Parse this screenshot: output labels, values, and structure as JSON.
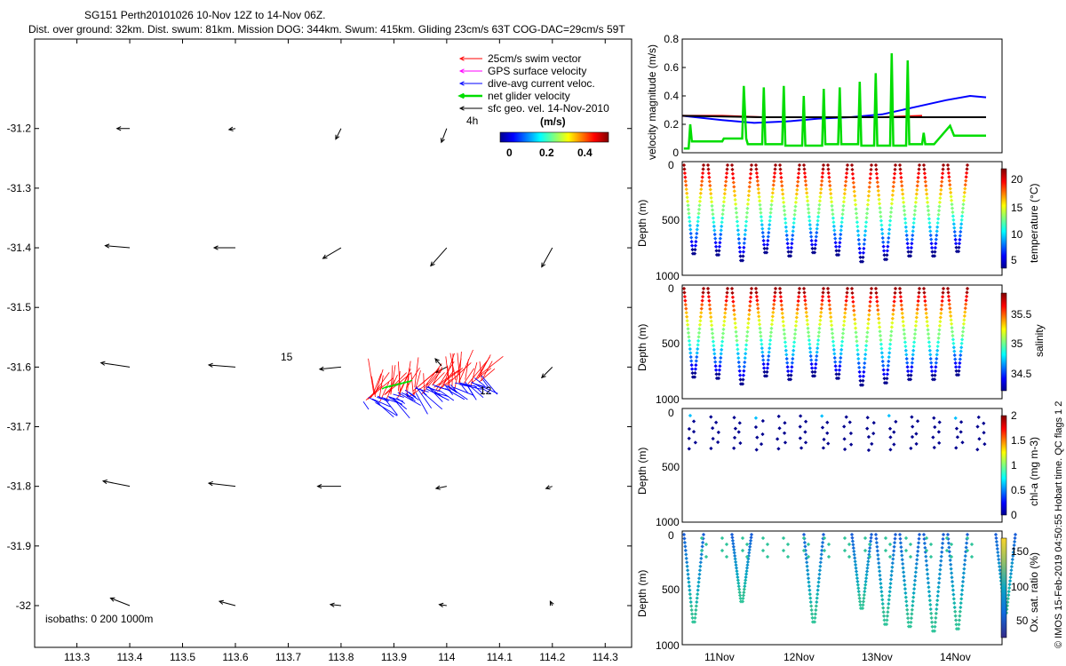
{
  "header": {
    "line1": "SG151 Perth20101026 10-Nov 12Z to 14-Nov 06Z.",
    "line2": "Dist. over ground: 32km. Dist. swum: 81km. Mission DOG: 344km. Swum: 415km. Gliding 23cm/s 63T COG-DAC=29cm/s 59T"
  },
  "side_note": "© IMOS 15-Feb-2019 04:50:55 Hobart time. QC flags 1  2",
  "colors": {
    "red": "#ff0000",
    "magenta": "#ff00ff",
    "blue": "#0000ff",
    "green": "#00dd00",
    "black": "#000000"
  },
  "chart_data": [
    {
      "id": "map",
      "type": "scatter",
      "title": "",
      "xlabel": "",
      "ylabel": "",
      "xlim": [
        113.22,
        114.35
      ],
      "ylim": [
        -32.07,
        -31.05
      ],
      "xticks": [
        "113.3",
        "113.4",
        "113.5",
        "113.6",
        "113.7",
        "113.8",
        "113.9",
        "114",
        "114.1",
        "114.2",
        "114.3"
      ],
      "xtick_values": [
        113.3,
        113.4,
        113.5,
        113.6,
        113.7,
        113.8,
        113.9,
        114.0,
        114.1,
        114.2,
        114.3
      ],
      "yticks": [
        "-31.2",
        "-31.3",
        "-31.4",
        "-31.5",
        "-31.6",
        "-31.7",
        "-31.8",
        "-31.9",
        "-32"
      ],
      "ytick_values": [
        -31.2,
        -31.3,
        -31.4,
        -31.5,
        -31.6,
        -31.7,
        -31.8,
        -31.9,
        -32.0
      ],
      "legend": [
        {
          "label": "25cm/s swim vector",
          "color": "#ff0000"
        },
        {
          "label": "GPS surface velocity",
          "color": "#ff00ff"
        },
        {
          "label": "dive-avg current veloc.",
          "color": "#0000ff"
        },
        {
          "label": "net glider velocity",
          "color": "#00dd00"
        },
        {
          "label": "sfc geo. vel. 14-Nov-2010",
          "color": "#000000"
        }
      ],
      "colorbar": {
        "label": "(m/s)",
        "ticks": [
          "0",
          "0.2",
          "0.4"
        ],
        "range": [
          0,
          0.5
        ]
      },
      "annotations": [
        "4h",
        "15",
        "12",
        "isobaths: 0   200  1000m"
      ],
      "geo_vectors": [
        {
          "lon": 113.4,
          "lat": -31.2,
          "u": -0.12,
          "v": 0.0
        },
        {
          "lon": 113.6,
          "lat": -31.2,
          "u": -0.06,
          "v": -0.01
        },
        {
          "lon": 113.8,
          "lat": -31.2,
          "u": -0.05,
          "v": -0.1
        },
        {
          "lon": 114.0,
          "lat": -31.2,
          "u": -0.05,
          "v": -0.13
        },
        {
          "lon": 113.4,
          "lat": -31.4,
          "u": -0.23,
          "v": 0.02
        },
        {
          "lon": 113.6,
          "lat": -31.4,
          "u": -0.2,
          "v": 0.0
        },
        {
          "lon": 113.8,
          "lat": -31.4,
          "u": -0.17,
          "v": -0.1
        },
        {
          "lon": 114.0,
          "lat": -31.4,
          "u": -0.15,
          "v": -0.17
        },
        {
          "lon": 114.2,
          "lat": -31.4,
          "u": -0.1,
          "v": -0.18
        },
        {
          "lon": 113.4,
          "lat": -31.6,
          "u": -0.27,
          "v": 0.04
        },
        {
          "lon": 113.6,
          "lat": -31.6,
          "u": -0.25,
          "v": 0.02
        },
        {
          "lon": 113.8,
          "lat": -31.6,
          "u": -0.2,
          "v": -0.02
        },
        {
          "lon": 114.0,
          "lat": -31.6,
          "u": -0.1,
          "v": -0.05
        },
        {
          "lon": 114.2,
          "lat": -31.6,
          "u": -0.1,
          "v": -0.1
        },
        {
          "lon": 113.4,
          "lat": -31.8,
          "u": -0.25,
          "v": 0.05
        },
        {
          "lon": 113.6,
          "lat": -31.8,
          "u": -0.25,
          "v": 0.03
        },
        {
          "lon": 113.8,
          "lat": -31.8,
          "u": -0.22,
          "v": 0.0
        },
        {
          "lon": 114.0,
          "lat": -31.8,
          "u": -0.1,
          "v": -0.02
        },
        {
          "lon": 114.2,
          "lat": -31.8,
          "u": -0.06,
          "v": -0.02
        },
        {
          "lon": 113.4,
          "lat": -32.0,
          "u": -0.18,
          "v": 0.07
        },
        {
          "lon": 113.6,
          "lat": -32.0,
          "u": -0.15,
          "v": 0.04
        },
        {
          "lon": 113.8,
          "lat": -32.0,
          "u": -0.1,
          "v": 0.01
        },
        {
          "lon": 114.0,
          "lat": -32.0,
          "u": -0.07,
          "v": 0.01
        },
        {
          "lon": 114.2,
          "lat": -32.0,
          "u": -0.02,
          "v": 0.04
        }
      ]
    },
    {
      "id": "velocity",
      "type": "line",
      "xlabel": "",
      "ylabel": "velocity magnitude (m/s)",
      "ylim": [
        0,
        0.8
      ],
      "yticks": [
        "0",
        "0.2",
        "0.4",
        "0.6",
        "0.8"
      ],
      "ytick_values": [
        0,
        0.2,
        0.4,
        0.6,
        0.8
      ],
      "xlim": [
        10.5,
        14.5
      ],
      "series": [
        {
          "name": "dive-avg current",
          "color": "#0000ff",
          "x": [
            10.5,
            11.0,
            11.4,
            11.8,
            12.2,
            12.6,
            13.0,
            13.4,
            13.8,
            14.1,
            14.3
          ],
          "y": [
            0.26,
            0.23,
            0.21,
            0.22,
            0.24,
            0.25,
            0.27,
            0.32,
            0.37,
            0.4,
            0.39
          ]
        },
        {
          "name": "swim",
          "color": "#ff0000",
          "x": [
            10.5,
            11.0,
            11.5,
            12.0,
            12.5,
            13.0,
            13.5
          ],
          "y": [
            0.26,
            0.26,
            0.25,
            0.25,
            0.25,
            0.25,
            0.26
          ]
        },
        {
          "name": "sfc geo",
          "color": "#000000",
          "x": [
            10.5,
            11.5,
            12.5,
            13.5,
            14.3
          ],
          "y": [
            0.26,
            0.25,
            0.25,
            0.25,
            0.25
          ]
        },
        {
          "name": "net glider velocity",
          "color": "#00dd00",
          "x": [
            10.52,
            10.58,
            10.6,
            10.62,
            11.0,
            11.02,
            11.25,
            11.27,
            11.3,
            11.32,
            11.5,
            11.52,
            11.54,
            11.75,
            11.77,
            11.79,
            12.0,
            12.02,
            12.04,
            12.25,
            12.27,
            12.29,
            12.45,
            12.47,
            12.49,
            12.7,
            12.72,
            12.74,
            12.9,
            12.92,
            12.94,
            13.1,
            13.12,
            13.14,
            13.3,
            13.32,
            13.34,
            13.5,
            13.52,
            13.54,
            13.65,
            13.85,
            13.9,
            14.3
          ],
          "y": [
            0.03,
            0.03,
            0.2,
            0.08,
            0.08,
            0.1,
            0.1,
            0.47,
            0.1,
            0.06,
            0.06,
            0.46,
            0.06,
            0.06,
            0.47,
            0.05,
            0.05,
            0.4,
            0.05,
            0.05,
            0.45,
            0.06,
            0.06,
            0.46,
            0.06,
            0.06,
            0.5,
            0.05,
            0.05,
            0.56,
            0.05,
            0.05,
            0.7,
            0.05,
            0.05,
            0.65,
            0.06,
            0.06,
            0.14,
            0.06,
            0.06,
            0.19,
            0.12,
            0.12
          ]
        }
      ]
    },
    {
      "id": "temperature",
      "type": "scatter",
      "ylabel": "Depth (m)",
      "ylim": [
        1000,
        0
      ],
      "yticks": [
        "0",
        "500",
        "1000"
      ],
      "colorbar": {
        "label": "temperature (°C)",
        "ticks": [
          "5",
          "10",
          "15",
          "20"
        ],
        "range": [
          3,
          23
        ]
      },
      "dive_bottoms_m": [
        810,
        820,
        870,
        800,
        830,
        800,
        820,
        880,
        860,
        830,
        830,
        790
      ]
    },
    {
      "id": "salinity",
      "type": "scatter",
      "ylabel": "Depth (m)",
      "ylim": [
        1000,
        0
      ],
      "yticks": [
        "0",
        "500",
        "1000"
      ],
      "colorbar": {
        "label": "salinity",
        "ticks": [
          "34.5",
          "35",
          "35.5"
        ],
        "range": [
          34.3,
          35.9
        ]
      },
      "dive_bottoms_m": [
        810,
        820,
        870,
        800,
        830,
        800,
        820,
        880,
        860,
        830,
        830,
        790
      ]
    },
    {
      "id": "chla",
      "type": "scatter",
      "ylabel": "Depth (m)",
      "ylim": [
        1000,
        0
      ],
      "yticks": [
        "0",
        "500",
        "1000"
      ],
      "colorbar": {
        "label": "chl-a (mg m-3)",
        "ticks": [
          "0",
          "0.5",
          "1",
          "1.5",
          "2"
        ],
        "range": [
          0,
          2
        ]
      }
    },
    {
      "id": "oxygen",
      "type": "scatter",
      "ylabel": "Depth (m)",
      "ylim": [
        1000,
        0
      ],
      "yticks": [
        "0",
        "500",
        "1000"
      ],
      "xticks": [
        "11Nov",
        "12Nov",
        "13Nov",
        "14Nov"
      ],
      "xtick_values": [
        11,
        12,
        13,
        14
      ],
      "colorbar": {
        "label": "Ox. sat. ratio (%)",
        "ticks": [
          "50",
          "100",
          "150"
        ],
        "range": [
          20,
          175
        ]
      },
      "dive_bottoms_m": [
        800,
        0,
        620,
        0,
        0,
        800,
        0,
        680,
        820,
        840,
        880,
        860,
        0,
        720,
        0
      ]
    }
  ]
}
